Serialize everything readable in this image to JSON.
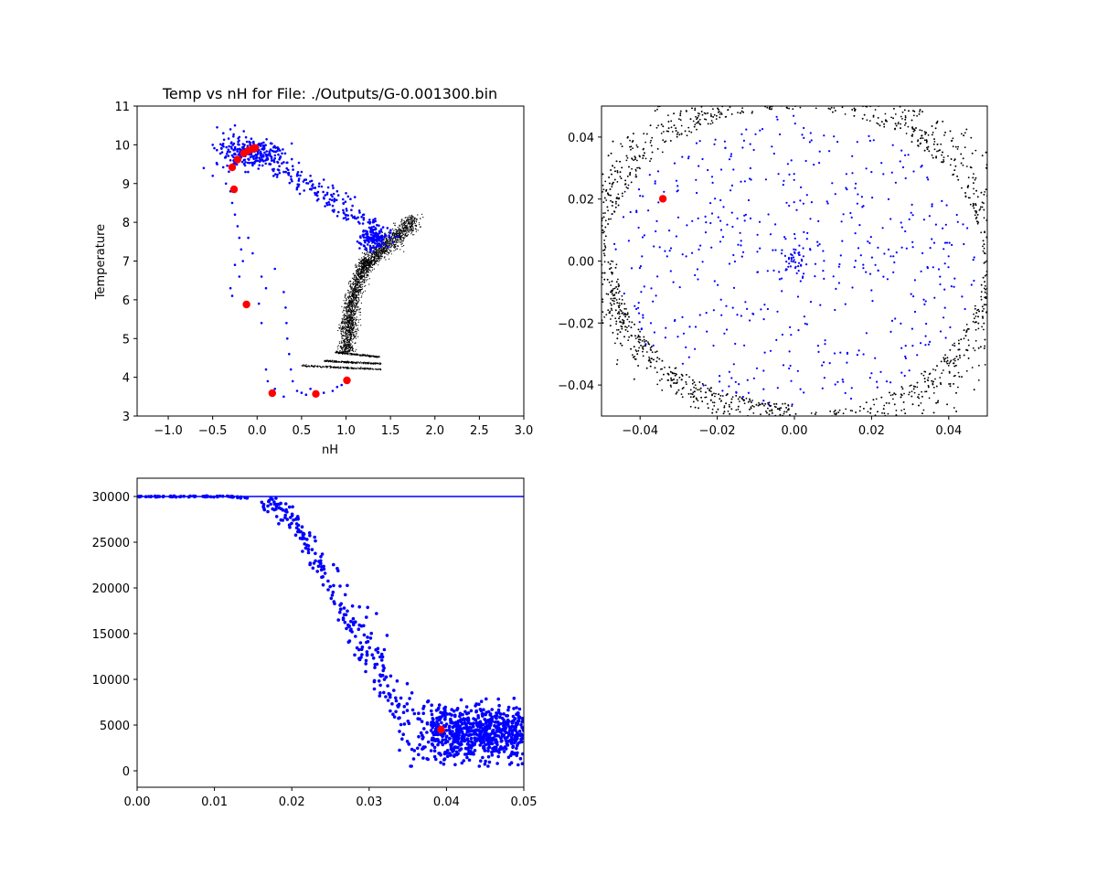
{
  "chart_data": [
    {
      "type": "scatter",
      "title": "Temp vs nH for File: ./Outputs/G-0.001300.bin",
      "xlabel": "nH",
      "ylabel": "Temperature",
      "xlim": [
        -1.35,
        3.0
      ],
      "ylim": [
        3,
        11
      ],
      "xticks": [
        "−1.0",
        "−0.5",
        "0.0",
        "0.5",
        "1.0",
        "1.5",
        "2.0",
        "2.5",
        "3.0"
      ],
      "xtick_values": [
        -1.0,
        -0.5,
        0.0,
        0.5,
        1.0,
        1.5,
        2.0,
        2.5,
        3.0
      ],
      "yticks": [
        "3",
        "4",
        "5",
        "6",
        "7",
        "8",
        "9",
        "10",
        "11"
      ],
      "ytick_values": [
        3,
        4,
        5,
        6,
        7,
        8,
        9,
        10,
        11
      ],
      "grid": false,
      "series": [
        {
          "color": "#000000",
          "marker": "tiny",
          "description_regions": [
            {
              "x_range": [
                0.9,
                1.4
              ],
              "y_range": [
                4.6,
                7.0
              ],
              "kind": "dense-branch"
            },
            {
              "x_range": [
                1.2,
                1.8
              ],
              "y_range": [
                6.8,
                8.1
              ],
              "kind": "dense-branch"
            },
            {
              "x_range": [
                0.88,
                1.38
              ],
              "y_range": [
                4.2,
                4.65
              ],
              "kind": "streaks"
            }
          ]
        },
        {
          "color": "#0000ff",
          "marker": "small",
          "points": [
            [
              -0.45,
              10.45
            ],
            [
              -0.38,
              10.3
            ],
            [
              -0.3,
              10.4
            ],
            [
              -0.25,
              10.5
            ],
            [
              -0.2,
              10.2
            ],
            [
              -0.15,
              10.35
            ],
            [
              -0.5,
              10.0
            ],
            [
              -0.4,
              9.9
            ],
            [
              -0.35,
              9.7
            ],
            [
              -0.3,
              9.6
            ],
            [
              -0.25,
              9.9
            ],
            [
              -0.2,
              9.75
            ],
            [
              -0.15,
              9.95
            ],
            [
              -0.1,
              9.8
            ],
            [
              -0.05,
              9.7
            ],
            [
              0.0,
              9.85
            ],
            [
              0.05,
              9.6
            ],
            [
              0.1,
              9.75
            ],
            [
              0.15,
              9.5
            ],
            [
              0.2,
              9.65
            ],
            [
              0.25,
              9.45
            ],
            [
              0.3,
              9.55
            ],
            [
              0.35,
              9.35
            ],
            [
              0.4,
              9.45
            ],
            [
              0.45,
              9.2
            ],
            [
              0.5,
              9.3
            ],
            [
              0.55,
              9.1
            ],
            [
              0.6,
              9.2
            ],
            [
              0.7,
              9.0
            ],
            [
              0.75,
              9.1
            ],
            [
              0.8,
              8.9
            ],
            [
              0.85,
              8.95
            ],
            [
              0.9,
              8.8
            ],
            [
              1.0,
              8.75
            ],
            [
              1.05,
              8.6
            ],
            [
              1.1,
              8.65
            ],
            [
              1.15,
              8.3
            ],
            [
              1.2,
              8.2
            ],
            [
              1.25,
              8.0
            ],
            [
              1.3,
              7.8
            ],
            [
              1.35,
              7.6
            ],
            [
              1.4,
              7.5
            ],
            [
              1.2,
              7.4
            ],
            [
              1.25,
              7.55
            ],
            [
              1.3,
              7.35
            ],
            [
              1.35,
              7.7
            ],
            [
              1.45,
              7.65
            ],
            [
              1.5,
              7.6
            ],
            [
              -0.6,
              9.4
            ],
            [
              -0.5,
              9.2
            ],
            [
              -0.45,
              9.5
            ],
            [
              -0.35,
              9.0
            ],
            [
              -0.3,
              8.8
            ],
            [
              -0.28,
              8.5
            ],
            [
              -0.25,
              8.2
            ],
            [
              -0.22,
              7.9
            ],
            [
              -0.2,
              7.6
            ],
            [
              -0.18,
              7.3
            ],
            [
              -0.16,
              7.0
            ],
            [
              -0.2,
              6.6
            ],
            [
              -0.25,
              6.9
            ],
            [
              -0.1,
              7.6
            ],
            [
              -0.05,
              7.2
            ],
            [
              0.05,
              6.6
            ],
            [
              0.1,
              6.3
            ],
            [
              0.2,
              6.8
            ],
            [
              0.3,
              6.2
            ],
            [
              0.32,
              5.8
            ],
            [
              0.33,
              5.4
            ],
            [
              0.34,
              5.0
            ],
            [
              0.36,
              4.6
            ],
            [
              0.38,
              4.2
            ],
            [
              0.4,
              3.9
            ],
            [
              0.45,
              3.65
            ],
            [
              0.5,
              3.6
            ],
            [
              0.55,
              3.55
            ],
            [
              0.6,
              3.7
            ],
            [
              0.75,
              3.6
            ],
            [
              0.85,
              3.65
            ],
            [
              0.9,
              3.75
            ],
            [
              0.95,
              3.8
            ],
            [
              0.1,
              4.2
            ],
            [
              0.12,
              3.9
            ],
            [
              0.2,
              3.7
            ],
            [
              0.3,
              3.5
            ],
            [
              -0.3,
              6.3
            ],
            [
              -0.28,
              6.1
            ],
            [
              0.05,
              5.4
            ],
            [
              0.02,
              5.9
            ]
          ]
        },
        {
          "color": "#ff0000",
          "marker": "large",
          "points": [
            [
              -0.28,
              9.42
            ],
            [
              -0.22,
              9.62
            ],
            [
              -0.15,
              9.78
            ],
            [
              -0.1,
              9.85
            ],
            [
              -0.05,
              9.9
            ],
            [
              -0.02,
              9.92
            ],
            [
              -0.26,
              8.85
            ],
            [
              -0.12,
              5.88
            ],
            [
              0.17,
              3.59
            ],
            [
              0.66,
              3.57
            ],
            [
              1.01,
              3.92
            ]
          ]
        }
      ]
    },
    {
      "type": "scatter",
      "title": "",
      "xlabel": "",
      "ylabel": "",
      "xlim": [
        -0.05,
        0.05
      ],
      "ylim": [
        -0.05,
        0.05
      ],
      "xticks": [
        "−0.04",
        "−0.02",
        "0.00",
        "0.02",
        "0.04"
      ],
      "xtick_values": [
        -0.04,
        -0.02,
        0.0,
        0.02,
        0.04
      ],
      "yticks": [
        "−0.04",
        "−0.02",
        "0.00",
        "0.02",
        "0.04"
      ],
      "ytick_values": [
        -0.04,
        -0.02,
        0.0,
        0.02,
        0.04
      ],
      "grid": false,
      "series": [
        {
          "color": "#000000",
          "marker": "tiny",
          "description_regions": [
            {
              "center": [
                0.0,
                0.0
              ],
              "radius_range": [
                0.048,
                0.075
              ],
              "kind": "ring"
            }
          ]
        },
        {
          "color": "#0000ff",
          "marker": "small",
          "description_regions": [
            {
              "center": [
                0.0,
                0.0
              ],
              "radius_range": [
                0.0,
                0.048
              ],
              "kind": "disk"
            }
          ]
        },
        {
          "color": "#ff0000",
          "marker": "large",
          "points": [
            [
              -0.0341,
              0.0201
            ]
          ]
        }
      ]
    },
    {
      "type": "scatter",
      "title": "",
      "xlabel": "",
      "ylabel": "",
      "xlim": [
        0.0,
        0.05
      ],
      "ylim": [
        -1800,
        32000
      ],
      "xticks": [
        "0.00",
        "0.01",
        "0.02",
        "0.03",
        "0.04",
        "0.05"
      ],
      "xtick_values": [
        0.0,
        0.01,
        0.02,
        0.03,
        0.04,
        0.05
      ],
      "yticks": [
        "0",
        "5000",
        "10000",
        "15000",
        "20000",
        "25000",
        "30000"
      ],
      "ytick_values": [
        0,
        5000,
        10000,
        15000,
        20000,
        25000,
        30000
      ],
      "grid": false,
      "hline": {
        "y": 30000,
        "color": "#0000ff"
      },
      "series": [
        {
          "color": "#0000ff",
          "marker": "small",
          "description_regions": [
            {
              "x_range": [
                0.0,
                0.016
              ],
              "y_range": [
                29000,
                30000
              ],
              "kind": "flat"
            },
            {
              "x_range": [
                0.016,
                0.05
              ],
              "y_range": [
                500,
                29500
              ],
              "kind": "decline-cloud"
            }
          ]
        },
        {
          "color": "#ff0000",
          "marker": "large",
          "points": [
            [
              0.0393,
              4500
            ]
          ]
        }
      ]
    }
  ]
}
